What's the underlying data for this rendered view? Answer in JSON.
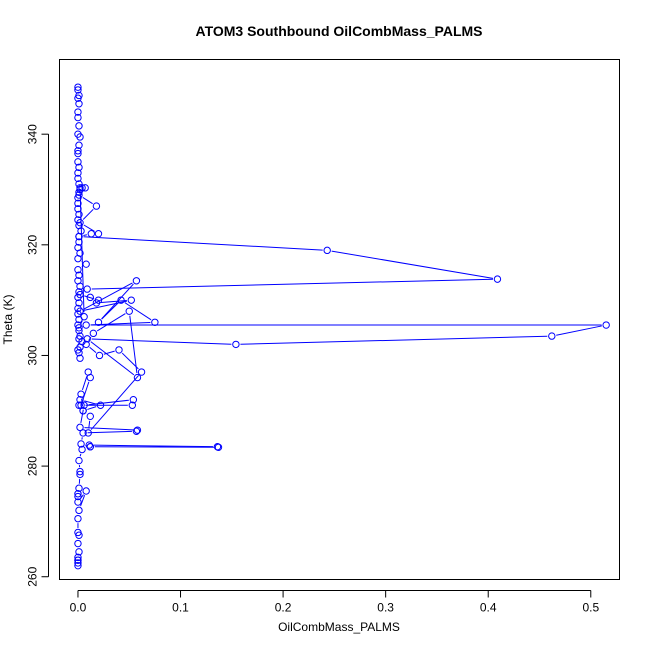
{
  "chart_data": {
    "type": "line",
    "title": "ATOM3 Southbound OilCombMass_PALMS",
    "xlabel": "OilCombMass_PALMS",
    "ylabel": "Theta (K)",
    "xlim": [
      -0.018,
      0.528
    ],
    "ylim": [
      259.5,
      353.5
    ],
    "xticks": [
      0.0,
      0.1,
      0.2,
      0.3,
      0.4,
      0.5
    ],
    "xtick_labels": [
      "0.0",
      "0.1",
      "0.2",
      "0.3",
      "0.4",
      "0.5"
    ],
    "yticks": [
      260,
      280,
      300,
      320,
      340
    ],
    "ytick_labels": [
      "260",
      "280",
      "300",
      "320",
      "340"
    ],
    "grid": false,
    "markers": "open-circle",
    "color": "#0000ff",
    "series": [
      {
        "x": [
          0.0,
          0.0,
          0.001,
          0.0,
          0.001,
          0.0,
          0.0,
          0.001,
          0.0,
          0.002,
          0.001,
          0.0,
          0.0,
          0.0,
          0.001,
          0.0,
          0.0,
          0.001,
          0.002,
          0.001,
          0.0,
          0.0,
          0.0,
          0.001,
          0.0,
          0.001,
          0.003,
          0.001,
          0.001,
          0.0,
          0.002,
          0.0,
          0.008,
          0.0,
          0.001,
          0.0,
          0.002,
          0.001,
          0.0,
          0.001,
          0.0,
          0.0,
          0.001,
          0.0,
          0.001,
          0.002,
          0.004,
          0.002,
          0.001,
          0.002,
          0.0,
          0.001,
          0.001,
          0.006,
          0.002,
          0.004,
          0.007,
          0.001,
          0.018,
          0.002,
          0.02,
          0.013,
          0.001,
          0.243,
          0.409,
          0.009,
          0.002,
          0.02,
          0.012,
          0.018,
          0.052,
          0.002,
          0.057,
          0.02,
          0.042,
          0.075,
          0.008,
          0.515,
          0.462,
          0.154,
          0.009,
          0.058,
          0.05,
          0.015,
          0.008,
          0.021,
          0.04,
          0.062,
          0.01,
          0.012,
          0.005,
          0.022,
          0.002,
          0.001,
          0.005,
          0.003,
          0.01,
          0.012,
          0.003,
          0.053,
          0.054,
          0.006,
          0.002,
          0.058,
          0.057,
          0.005,
          0.003,
          0.012,
          0.011,
          0.136,
          0.137,
          0.012,
          0.004,
          0.001,
          0.002,
          0.002,
          0.001,
          0.0,
          0.0,
          0.0,
          0.008,
          0.001,
          0.0,
          0.0,
          0.001,
          0.0,
          0.001,
          0.0,
          0.0,
          0.0,
          0.0,
          0.0
        ],
        "y": [
          348.5,
          348.0,
          347.0,
          346.5,
          345.5,
          344.0,
          343.0,
          341.5,
          340.0,
          339.5,
          338.0,
          337.0,
          336.5,
          335.0,
          334.0,
          333.0,
          332.0,
          331.0,
          330.0,
          329.5,
          328.5,
          327.5,
          326.5,
          325.5,
          324.5,
          323.5,
          322.5,
          321.5,
          320.5,
          319.5,
          318.5,
          317.5,
          316.5,
          315.5,
          314.5,
          313.5,
          312.5,
          311.5,
          310.5,
          309.5,
          308.5,
          307.5,
          306.5,
          305.5,
          304.5,
          303.5,
          302.5,
          301.5,
          300.5,
          299.5,
          301.0,
          303.0,
          305.0,
          307.0,
          330.3,
          330.3,
          330.3,
          329.0,
          327.0,
          324.0,
          322.0,
          322.0,
          321.5,
          319.0,
          313.8,
          312.0,
          311.0,
          310.0,
          310.5,
          309.5,
          310.0,
          308.0,
          313.5,
          306.0,
          310.0,
          306.0,
          305.5,
          305.5,
          303.5,
          302.0,
          303.0,
          296.0,
          308.0,
          304.0,
          302.0,
          300.0,
          301.0,
          297.0,
          286.0,
          289.0,
          290.0,
          291.0,
          292.0,
          291.0,
          290.0,
          293.0,
          297.0,
          296.0,
          291.0,
          291.0,
          292.0,
          291.0,
          287.0,
          286.5,
          286.3,
          286.0,
          284.0,
          283.5,
          283.8,
          283.5,
          283.4,
          283.5,
          283.0,
          281.0,
          279.0,
          278.5,
          276.0,
          275.0,
          274.5,
          273.5,
          275.5,
          272.0,
          270.5,
          268.0,
          267.5,
          266.0,
          264.5,
          263.5,
          263.0,
          262.5,
          262.0,
          263.0
        ]
      }
    ]
  }
}
